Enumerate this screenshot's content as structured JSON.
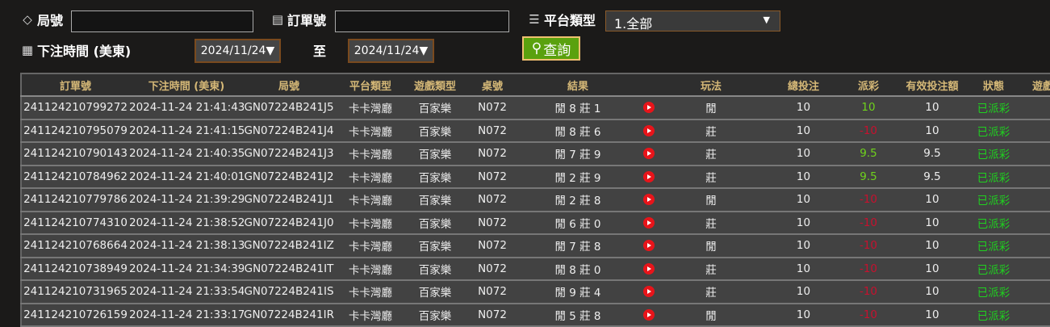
{
  "filters": {
    "round_label": "局號",
    "round_value": "",
    "order_label": "訂單號",
    "order_value": "",
    "platform_label": "平台類型",
    "platform_value": "1.全部",
    "time_label": "下注時間 (美東)",
    "date_from": "2024/11/24",
    "to_label": "至",
    "date_to": "2024/11/24",
    "query_label": "查詢"
  },
  "colors": {
    "accent": "#5aa10e",
    "header_text": "#d5b877",
    "positive": "#6fd21c",
    "negative": "#c8102e",
    "status": "#1fd11f"
  },
  "table": {
    "headers": [
      "訂單號",
      "下注時間 (美東)",
      "局號",
      "平台類型",
      "遊戲類型",
      "桌號",
      "結果",
      "",
      "玩法",
      "總投注",
      "派彩",
      "有效投注額",
      "狀態",
      "遊戲"
    ],
    "rows": [
      [
        "241124210799272",
        "2024-11-24 21:41:43",
        "GN07224B241J5",
        "卡卡灣廳",
        "百家樂",
        "N072",
        "閒 8 莊 1",
        "閒",
        "10",
        "10",
        "10",
        "已派彩"
      ],
      [
        "241124210795079",
        "2024-11-24 21:41:15",
        "GN07224B241J4",
        "卡卡灣廳",
        "百家樂",
        "N072",
        "閒 8 莊 6",
        "莊",
        "10",
        "-10",
        "10",
        "已派彩"
      ],
      [
        "241124210790143",
        "2024-11-24 21:40:35",
        "GN07224B241J3",
        "卡卡灣廳",
        "百家樂",
        "N072",
        "閒 7 莊 9",
        "莊",
        "10",
        "9.5",
        "9.5",
        "已派彩"
      ],
      [
        "241124210784962",
        "2024-11-24 21:40:01",
        "GN07224B241J2",
        "卡卡灣廳",
        "百家樂",
        "N072",
        "閒 2 莊 9",
        "莊",
        "10",
        "9.5",
        "9.5",
        "已派彩"
      ],
      [
        "241124210779786",
        "2024-11-24 21:39:29",
        "GN07224B241J1",
        "卡卡灣廳",
        "百家樂",
        "N072",
        "閒 2 莊 8",
        "閒",
        "10",
        "-10",
        "10",
        "已派彩"
      ],
      [
        "241124210774310",
        "2024-11-24 21:38:52",
        "GN07224B241J0",
        "卡卡灣廳",
        "百家樂",
        "N072",
        "閒 6 莊 0",
        "莊",
        "10",
        "-10",
        "10",
        "已派彩"
      ],
      [
        "241124210768664",
        "2024-11-24 21:38:13",
        "GN07224B241IZ",
        "卡卡灣廳",
        "百家樂",
        "N072",
        "閒 7 莊 8",
        "閒",
        "10",
        "-10",
        "10",
        "已派彩"
      ],
      [
        "241124210738949",
        "2024-11-24 21:34:39",
        "GN07224B241IT",
        "卡卡灣廳",
        "百家樂",
        "N072",
        "閒 8 莊 0",
        "莊",
        "10",
        "-10",
        "10",
        "已派彩"
      ],
      [
        "241124210731965",
        "2024-11-24 21:33:54",
        "GN07224B241IS",
        "卡卡灣廳",
        "百家樂",
        "N072",
        "閒 9 莊 4",
        "莊",
        "10",
        "-10",
        "10",
        "已派彩"
      ],
      [
        "241124210726159",
        "2024-11-24 21:33:17",
        "GN07224B241IR",
        "卡卡灣廳",
        "百家樂",
        "N072",
        "閒 5 莊 8",
        "閒",
        "10",
        "-10",
        "10",
        "已派彩"
      ]
    ]
  }
}
